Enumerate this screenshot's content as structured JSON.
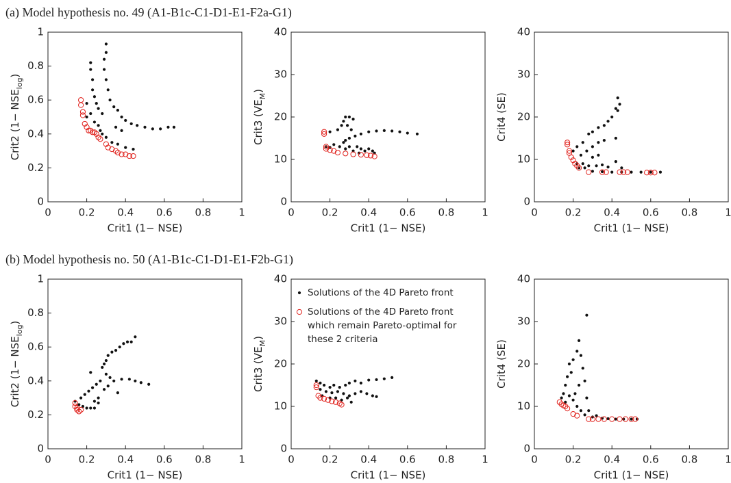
{
  "headings": [
    "(a)   Model hypothesis no. 49 (A1-B1c-C1-D1-E1-F2a-G1)",
    "(b)   Model hypothesis no. 50 (A1-B1c-C1-D1-E1-F2b-G1)"
  ],
  "chart_data": [
    {
      "type": "scatter",
      "xlabel": "Crit1  (1− NSE)",
      "ylabel": [
        "Crit2  (1− NSE",
        "log",
        ")"
      ],
      "xlim": [
        0,
        1
      ],
      "ylim": [
        0,
        1
      ],
      "xticks": [
        0,
        0.2,
        0.4,
        0.6,
        0.8,
        1
      ],
      "yticks": [
        0,
        0.2,
        0.4,
        0.6,
        0.8,
        1
      ],
      "series": [
        {
          "color": "#111111",
          "marker": "dot",
          "x": [
            0.22,
            0.22,
            0.23,
            0.23,
            0.24,
            0.25,
            0.26,
            0.28,
            0.3,
            0.3,
            0.29,
            0.29,
            0.3,
            0.31,
            0.32,
            0.34,
            0.36,
            0.38,
            0.4,
            0.43,
            0.46,
            0.5,
            0.54,
            0.58,
            0.62,
            0.65,
            0.2,
            0.22,
            0.24,
            0.27,
            0.3,
            0.33,
            0.36,
            0.4,
            0.44,
            0.26,
            0.28,
            0.2,
            0.35,
            0.38
          ],
          "y": [
            0.82,
            0.78,
            0.72,
            0.66,
            0.62,
            0.58,
            0.55,
            0.52,
            0.93,
            0.88,
            0.84,
            0.78,
            0.72,
            0.66,
            0.6,
            0.56,
            0.54,
            0.5,
            0.48,
            0.46,
            0.45,
            0.44,
            0.43,
            0.43,
            0.44,
            0.44,
            0.58,
            0.52,
            0.47,
            0.42,
            0.38,
            0.35,
            0.34,
            0.32,
            0.31,
            0.45,
            0.4,
            0.5,
            0.44,
            0.42
          ]
        },
        {
          "color": "#e0201b",
          "marker": "open-circle",
          "x": [
            0.17,
            0.17,
            0.18,
            0.18,
            0.19,
            0.2,
            0.21,
            0.22,
            0.23,
            0.24,
            0.25,
            0.26,
            0.27,
            0.3,
            0.31,
            0.33,
            0.35,
            0.36,
            0.38,
            0.4,
            0.42,
            0.44
          ],
          "y": [
            0.6,
            0.57,
            0.53,
            0.51,
            0.46,
            0.44,
            0.42,
            0.42,
            0.41,
            0.41,
            0.4,
            0.38,
            0.37,
            0.34,
            0.32,
            0.31,
            0.3,
            0.29,
            0.28,
            0.28,
            0.27,
            0.27
          ]
        }
      ]
    },
    {
      "type": "scatter",
      "xlabel": "Crit1  (1− NSE)",
      "ylabel": [
        "Crit3  (VE",
        "M",
        ")"
      ],
      "xlim": [
        0,
        1
      ],
      "ylim": [
        0,
        40
      ],
      "xticks": [
        0,
        0.2,
        0.4,
        0.6,
        0.8,
        1
      ],
      "yticks": [
        0,
        10,
        20,
        30,
        40
      ],
      "series": [
        {
          "color": "#111111",
          "marker": "dot",
          "x": [
            0.2,
            0.24,
            0.26,
            0.27,
            0.28,
            0.3,
            0.32,
            0.29,
            0.31,
            0.33,
            0.36,
            0.4,
            0.44,
            0.48,
            0.52,
            0.56,
            0.6,
            0.65,
            0.18,
            0.2,
            0.22,
            0.25,
            0.27,
            0.28,
            0.3,
            0.32,
            0.34,
            0.36,
            0.38,
            0.4,
            0.42,
            0.3,
            0.28,
            0.35,
            0.43
          ],
          "y": [
            16.5,
            17,
            18,
            19,
            20,
            20,
            19.5,
            18,
            17,
            15.5,
            16,
            16.5,
            16.7,
            16.8,
            16.7,
            16.5,
            16.2,
            16,
            13,
            12.8,
            13.5,
            13,
            14,
            12.5,
            13,
            12,
            13,
            12.5,
            12,
            12.5,
            12,
            15,
            14.5,
            11.5,
            11.5
          ]
        },
        {
          "color": "#e0201b",
          "marker": "open-circle",
          "x": [
            0.17,
            0.17,
            0.18,
            0.18,
            0.2,
            0.22,
            0.24,
            0.28,
            0.32,
            0.36,
            0.39,
            0.41,
            0.43
          ],
          "y": [
            16.5,
            16,
            13,
            12.5,
            12.2,
            12,
            11.6,
            11.4,
            11.2,
            11.1,
            11,
            10.9,
            10.7
          ]
        }
      ]
    },
    {
      "type": "scatter",
      "xlabel": "Crit1  (1− NSE)",
      "ylabel": [
        "Crit4  (SE)"
      ],
      "xlim": [
        0,
        1
      ],
      "ylim": [
        0,
        40
      ],
      "xticks": [
        0,
        0.2,
        0.4,
        0.6,
        0.8,
        1
      ],
      "yticks": [
        0,
        10,
        20,
        30,
        40
      ],
      "series": [
        {
          "color": "#111111",
          "marker": "dot",
          "x": [
            0.2,
            0.22,
            0.25,
            0.28,
            0.3,
            0.33,
            0.36,
            0.38,
            0.4,
            0.42,
            0.43,
            0.44,
            0.43,
            0.24,
            0.27,
            0.3,
            0.33,
            0.36,
            0.42,
            0.22,
            0.25,
            0.28,
            0.32,
            0.35,
            0.38,
            0.42,
            0.45,
            0.3,
            0.33,
            0.23,
            0.26,
            0.3,
            0.35,
            0.4,
            0.45,
            0.5,
            0.55,
            0.6,
            0.65
          ],
          "y": [
            12,
            13,
            14,
            16,
            16.5,
            17.5,
            18,
            19,
            20,
            22,
            24.5,
            23,
            21.5,
            11,
            12,
            13,
            14,
            14.5,
            15,
            9,
            9,
            8.5,
            8.5,
            8.7,
            8.2,
            9.5,
            8,
            10.5,
            11,
            8,
            8,
            7.2,
            7.1,
            7,
            7,
            7,
            7,
            7,
            7
          ]
        },
        {
          "color": "#e0201b",
          "marker": "open-circle",
          "x": [
            0.17,
            0.17,
            0.18,
            0.18,
            0.19,
            0.2,
            0.21,
            0.22,
            0.23,
            0.28,
            0.35,
            0.37,
            0.44,
            0.46,
            0.48,
            0.58,
            0.6,
            0.62
          ],
          "y": [
            14,
            13.5,
            12,
            11.5,
            10.5,
            9.8,
            9,
            8.5,
            8,
            7,
            7,
            7,
            7,
            7,
            7,
            6.9,
            6.9,
            6.9
          ]
        }
      ]
    },
    {
      "type": "scatter",
      "xlabel": "Crit1  (1− NSE)",
      "ylabel": [
        "Crit2  (1− NSE",
        "log",
        ")"
      ],
      "xlim": [
        0,
        1
      ],
      "ylim": [
        0,
        1
      ],
      "xticks": [
        0,
        0.2,
        0.4,
        0.6,
        0.8,
        1
      ],
      "yticks": [
        0,
        0.2,
        0.4,
        0.6,
        0.8,
        1
      ],
      "series": [
        {
          "color": "#111111",
          "marker": "dot",
          "x": [
            0.14,
            0.16,
            0.18,
            0.2,
            0.22,
            0.24,
            0.17,
            0.19,
            0.21,
            0.22,
            0.23,
            0.25,
            0.26,
            0.27,
            0.28,
            0.29,
            0.3,
            0.31,
            0.33,
            0.35,
            0.37,
            0.39,
            0.41,
            0.43,
            0.45,
            0.3,
            0.32,
            0.34,
            0.36,
            0.38,
            0.42,
            0.45,
            0.48,
            0.52,
            0.24,
            0.26,
            0.29,
            0.31
          ],
          "y": [
            0.28,
            0.26,
            0.25,
            0.24,
            0.24,
            0.24,
            0.3,
            0.32,
            0.34,
            0.45,
            0.36,
            0.38,
            0.3,
            0.4,
            0.48,
            0.5,
            0.52,
            0.55,
            0.57,
            0.58,
            0.6,
            0.62,
            0.63,
            0.63,
            0.66,
            0.44,
            0.42,
            0.4,
            0.33,
            0.41,
            0.41,
            0.4,
            0.39,
            0.38,
            0.28,
            0.27,
            0.35,
            0.37
          ]
        },
        {
          "color": "#e0201b",
          "marker": "open-circle",
          "x": [
            0.14,
            0.14,
            0.15,
            0.15,
            0.16,
            0.17
          ],
          "y": [
            0.27,
            0.25,
            0.24,
            0.23,
            0.22,
            0.23
          ]
        }
      ]
    },
    {
      "type": "scatter",
      "xlabel": "Crit1  (1− NSE)",
      "ylabel": [
        "Crit3  (VE",
        "M",
        ")"
      ],
      "xlim": [
        0,
        1
      ],
      "ylim": [
        0,
        40
      ],
      "xticks": [
        0,
        0.2,
        0.4,
        0.6,
        0.8,
        1
      ],
      "yticks": [
        0,
        10,
        20,
        30,
        40
      ],
      "legend": "upper left",
      "series": [
        {
          "name": "Solutions of the 4D Pareto front",
          "color": "#111111",
          "marker": "dot",
          "x": [
            0.13,
            0.15,
            0.17,
            0.2,
            0.22,
            0.25,
            0.28,
            0.3,
            0.33,
            0.36,
            0.4,
            0.44,
            0.48,
            0.52,
            0.15,
            0.18,
            0.21,
            0.24,
            0.27,
            0.3,
            0.33,
            0.36,
            0.39,
            0.42,
            0.44,
            0.16,
            0.2,
            0.23,
            0.26,
            0.29,
            0.31
          ],
          "y": [
            16,
            15.5,
            15,
            14.5,
            15,
            14.5,
            15,
            15.5,
            16,
            15.5,
            16.2,
            16.3,
            16.5,
            16.8,
            14,
            13.5,
            13.2,
            13.5,
            13,
            12.5,
            13,
            13.5,
            13,
            12.5,
            12.3,
            12.5,
            12,
            12,
            11.5,
            12,
            11
          ]
        },
        {
          "name": "Solutions of the 4D Pareto front which remain Pareto-optimal for these 2 criteria",
          "color": "#e0201b",
          "marker": "open-circle",
          "x": [
            0.13,
            0.13,
            0.14,
            0.15,
            0.17,
            0.19,
            0.21,
            0.23,
            0.25,
            0.26
          ],
          "y": [
            15,
            14.5,
            12.5,
            12,
            11.8,
            11.5,
            11.2,
            11,
            10.7,
            10.4
          ]
        }
      ]
    },
    {
      "type": "scatter",
      "xlabel": "Crit1  (1− NSE)",
      "ylabel": [
        "Crit4  (SE)"
      ],
      "xlim": [
        0,
        1
      ],
      "ylim": [
        0,
        40
      ],
      "xticks": [
        0,
        0.2,
        0.4,
        0.6,
        0.8,
        1
      ],
      "yticks": [
        0,
        10,
        20,
        30,
        40
      ],
      "series": [
        {
          "color": "#111111",
          "marker": "dot",
          "x": [
            0.14,
            0.15,
            0.16,
            0.17,
            0.18,
            0.19,
            0.2,
            0.22,
            0.23,
            0.24,
            0.25,
            0.26,
            0.27,
            0.27,
            0.28,
            0.18,
            0.2,
            0.22,
            0.24,
            0.26,
            0.3,
            0.32,
            0.35,
            0.38,
            0.42,
            0.46,
            0.5,
            0.53,
            0.16,
            0.21,
            0.23
          ],
          "y": [
            12,
            13,
            15,
            17,
            20,
            18,
            21,
            23,
            25.5,
            22,
            19,
            16,
            31.5,
            12,
            9,
            12.5,
            11.5,
            10,
            9,
            8,
            7.5,
            7.8,
            7.2,
            7.1,
            7,
            7,
            7,
            7,
            11,
            13,
            15
          ]
        },
        {
          "color": "#e0201b",
          "marker": "open-circle",
          "x": [
            0.13,
            0.14,
            0.15,
            0.16,
            0.17,
            0.2,
            0.22,
            0.28,
            0.3,
            0.33,
            0.36,
            0.4,
            0.44,
            0.47,
            0.5,
            0.52
          ],
          "y": [
            11,
            10.5,
            10.2,
            10,
            9.5,
            8.2,
            7.8,
            7,
            7,
            7,
            7,
            7,
            7,
            7,
            7,
            7
          ]
        }
      ]
    }
  ]
}
